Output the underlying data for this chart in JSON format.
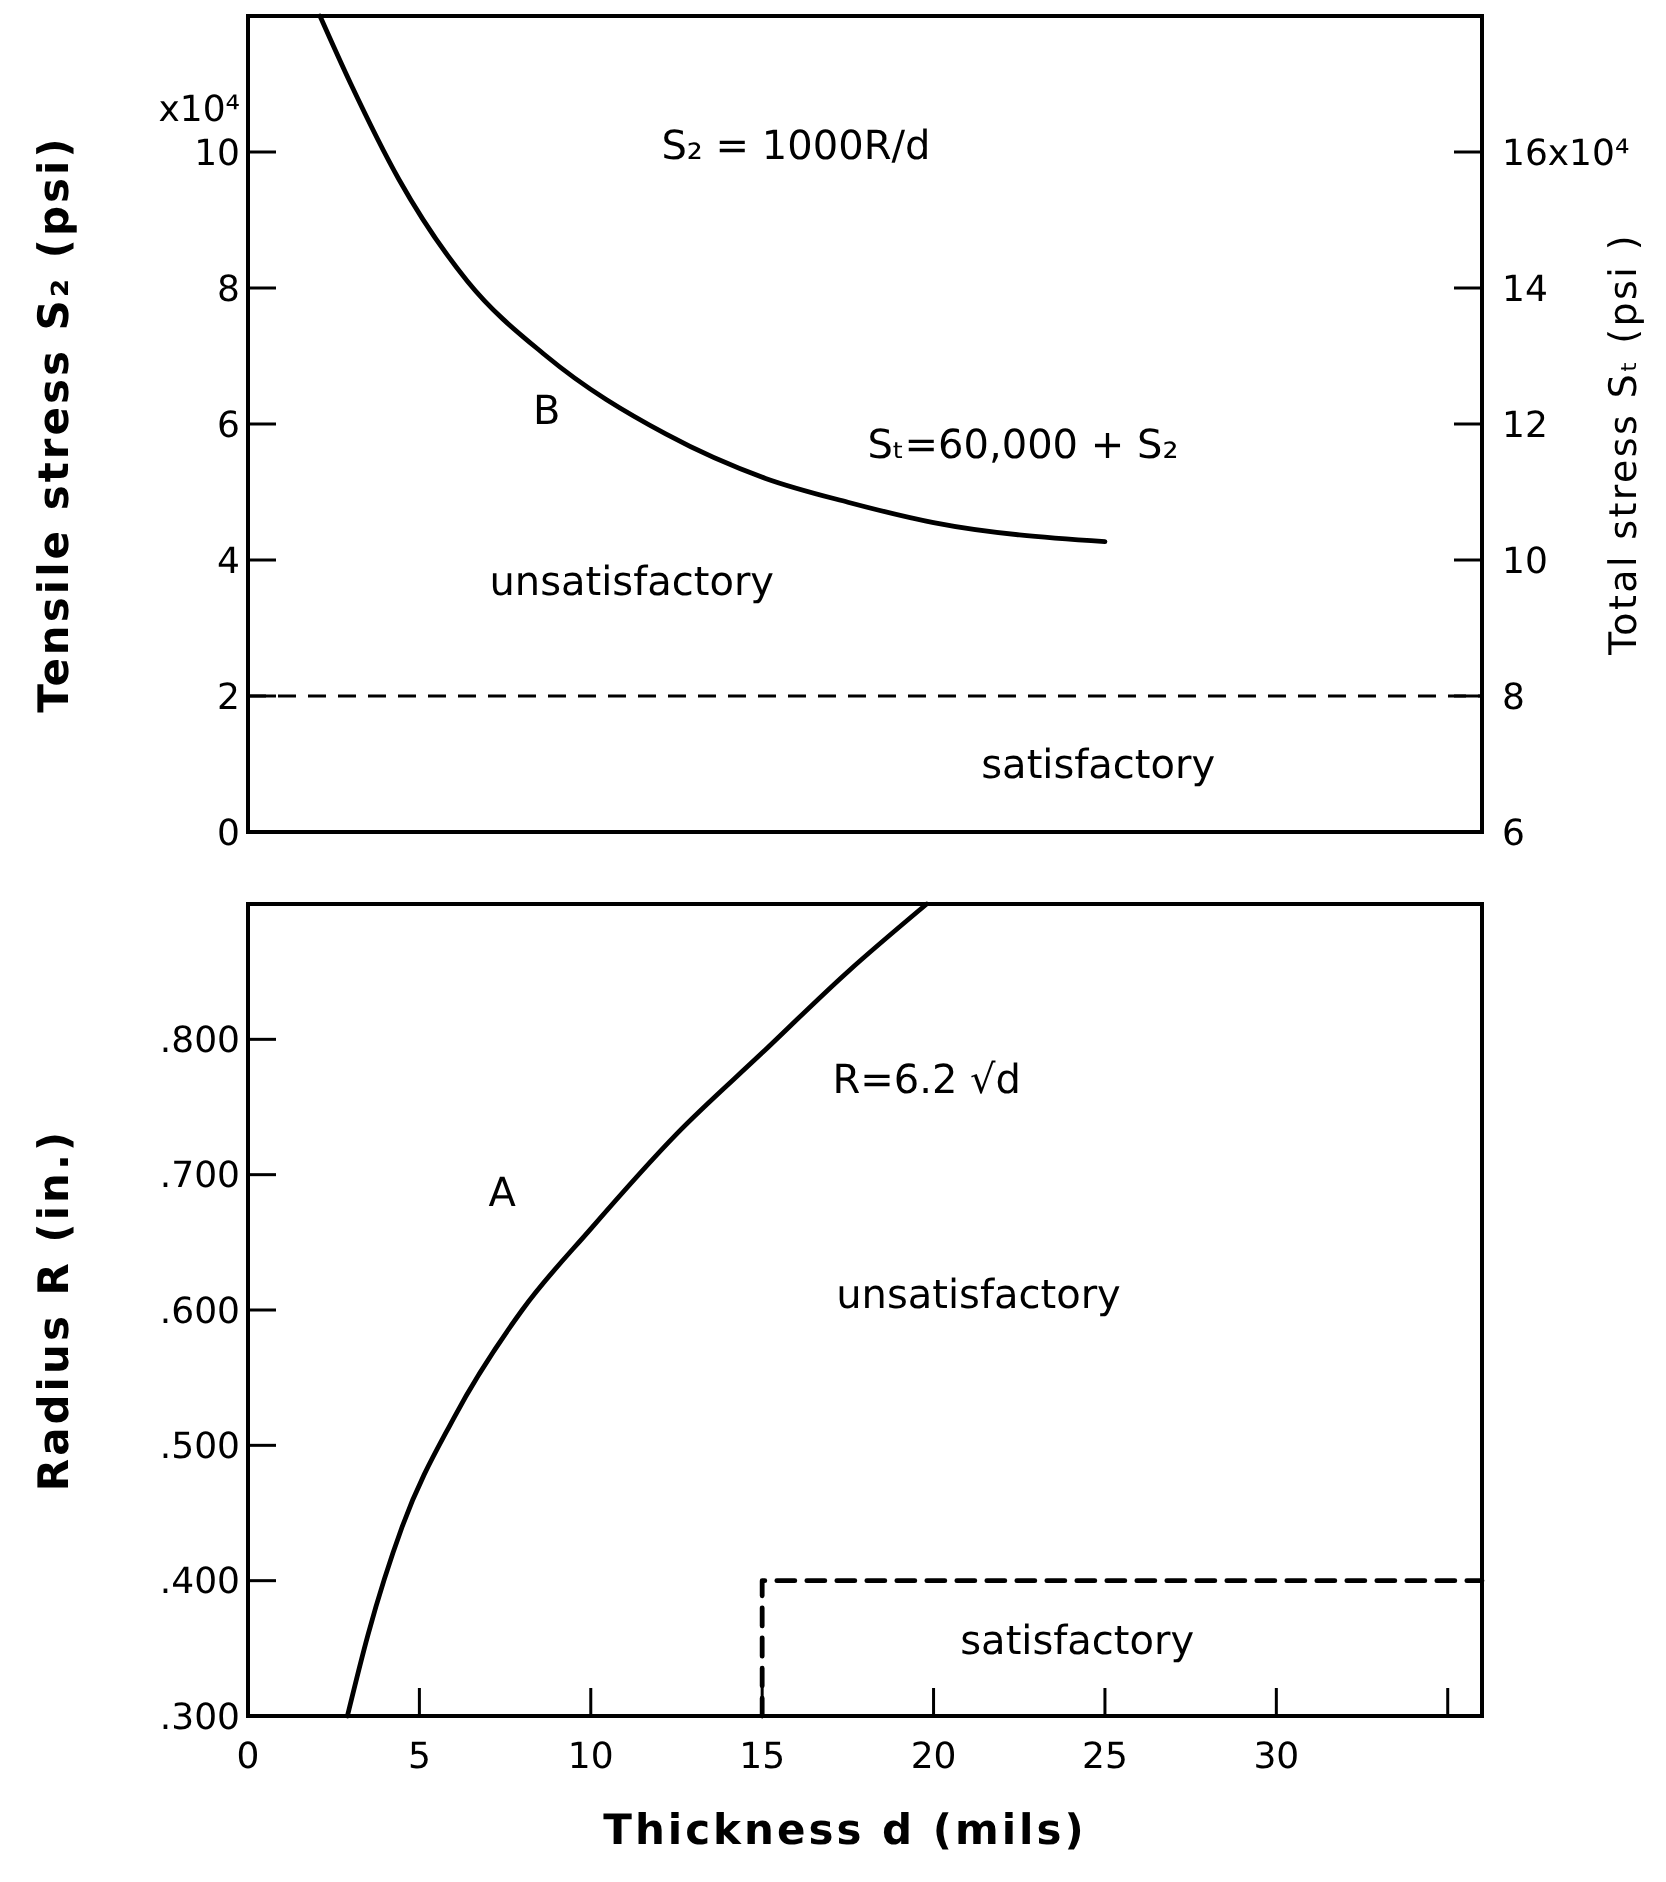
{
  "chart_data": [
    {
      "type": "line",
      "ylabel": "Tensile stress S₂ (psi)",
      "y2label": "Total stress Sₜ (psi )",
      "xlim": [
        0,
        36
      ],
      "ylim": [
        0,
        12
      ],
      "y2lim": [
        6,
        18
      ],
      "yticks": [
        0,
        2,
        4,
        6,
        8,
        10
      ],
      "y2ticks": [
        6,
        8,
        10,
        12,
        14,
        16
      ],
      "tick_labels": "y",
      "series": [
        {
          "color": "#000000",
          "line_style": "solid",
          "x": [
            2.1,
            3,
            4.4,
            6.4,
            8.7,
            12.2,
            15.1,
            17.5,
            20,
            25
          ],
          "values": [
            12,
            11,
            9.6,
            8.1,
            7.0,
            5.85,
            5.2,
            4.85,
            4.55,
            4.27
          ]
        }
      ],
      "ref_lines": [
        {
          "axis": "y",
          "value": 2,
          "line_style": "dashed",
          "color": "#000000"
        }
      ],
      "annotations": [
        "S₂ = 1000R/d",
        "B",
        "Sₜ=60,000 + S₂",
        "unsatisfactory",
        "satisfactory",
        "x10⁴",
        "x10⁴"
      ]
    },
    {
      "type": "line",
      "xlabel": "Thickness d (mils)",
      "ylabel": "Radius R (in.)",
      "xlim": [
        0,
        36
      ],
      "ylim": [
        0.3,
        0.9
      ],
      "xticks": [
        0,
        5,
        10,
        15,
        20,
        25,
        30,
        {
          "value": 35,
          "label": null
        }
      ],
      "yticks": [
        {
          "value": 0.3,
          "label": ".300"
        },
        {
          "value": 0.4,
          "label": ".400"
        },
        {
          "value": 0.5,
          "label": ".500"
        },
        {
          "value": 0.6,
          "label": ".600"
        },
        {
          "value": 0.7,
          "label": ".700"
        },
        {
          "value": 0.8,
          "label": ".800"
        }
      ],
      "series": [
        {
          "color": "#000000",
          "line_style": "solid",
          "x": [
            2.9,
            3.5,
            4.5,
            6,
            8,
            10,
            12.5,
            15,
            17.5,
            19.8
          ],
          "values": [
            0.3,
            0.36,
            0.44,
            0.52,
            0.6,
            0.66,
            0.73,
            0.79,
            0.85,
            0.9
          ]
        },
        {
          "color": "#000000",
          "line_style": "dashed",
          "x": [
            15,
            15,
            36
          ],
          "values": [
            0.3,
            0.4,
            0.4
          ]
        }
      ],
      "annotations": [
        "A",
        "R=6.2 √d",
        "unsatisfactory",
        "satisfactory"
      ]
    }
  ]
}
